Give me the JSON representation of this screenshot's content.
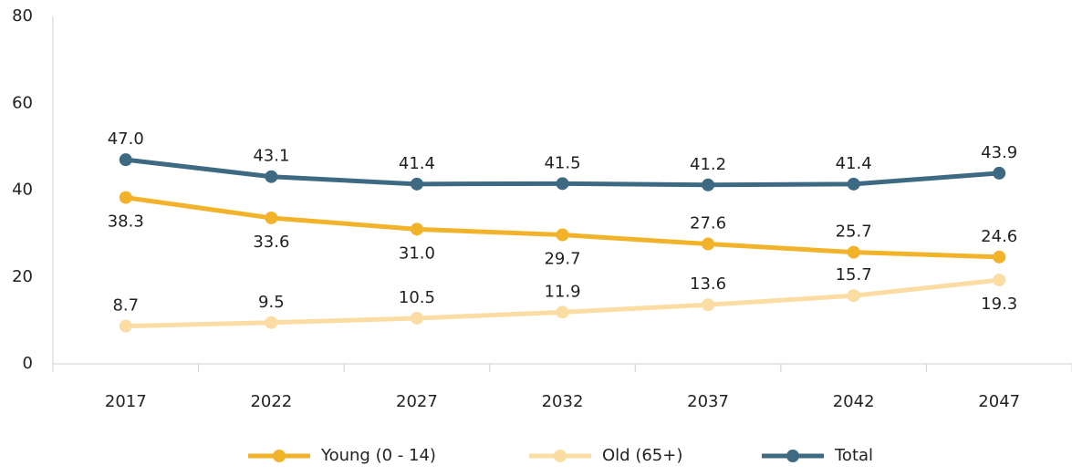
{
  "chart_data": {
    "type": "line",
    "categories": [
      "2017",
      "2022",
      "2027",
      "2032",
      "2037",
      "2042",
      "2047"
    ],
    "series": [
      {
        "name": "Young (0 - 14)",
        "color": "#f2b32a",
        "values": [
          38.3,
          33.6,
          31,
          29.7,
          27.6,
          25.7,
          24.6
        ],
        "value_labels": [
          "38.3",
          "33.6",
          "31.0",
          "29.7",
          "27.6",
          "25.7",
          "24.6"
        ]
      },
      {
        "name": "Old (65+)",
        "color": "#fbdca3",
        "values": [
          8.7,
          9.5,
          10.5,
          11.9,
          13.6,
          15.7,
          19.3
        ],
        "value_labels": [
          "8.7",
          "9.5",
          "10.5",
          "11.9",
          "13.6",
          "15.7",
          "19.3"
        ]
      },
      {
        "name": "Total",
        "color": "#3d6a82",
        "values": [
          47,
          43.1,
          41.4,
          41.5,
          41.2,
          41.4,
          43.9
        ],
        "value_labels": [
          "47.0",
          "43.1",
          "41.4",
          "41.5",
          "41.2",
          "41.4",
          "43.9"
        ]
      }
    ],
    "ylim": [
      0,
      80
    ],
    "yticks": [
      0,
      20,
      40,
      60,
      80
    ],
    "grid": false,
    "legend": "bottom"
  }
}
